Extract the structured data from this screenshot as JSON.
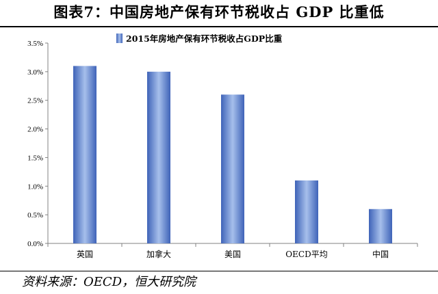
{
  "header": {
    "title": "图表7：中国房地产保有环节税收占 GDP 比重低"
  },
  "footer": {
    "source": "资料来源：OECD，恒大研究院"
  },
  "colors": {
    "bar_gradient": [
      "#3f63b8",
      "#9bb5e6",
      "#3f63b8"
    ],
    "axis": "#808080"
  },
  "chart_data": {
    "type": "bar",
    "categories": [
      "英国",
      "加拿大",
      "美国",
      "OECD平均",
      "中国"
    ],
    "series": [
      {
        "name": "2015年房地产保有环节税收占GDP比重",
        "values": [
          3.1,
          3.0,
          2.6,
          1.1,
          0.6
        ]
      }
    ],
    "yticks": [
      "0.0%",
      "0.5%",
      "1.0%",
      "1.5%",
      "2.0%",
      "2.5%",
      "3.0%",
      "3.5%"
    ],
    "ylim": [
      0,
      3.5
    ],
    "legend": "top-center",
    "grid": false
  }
}
